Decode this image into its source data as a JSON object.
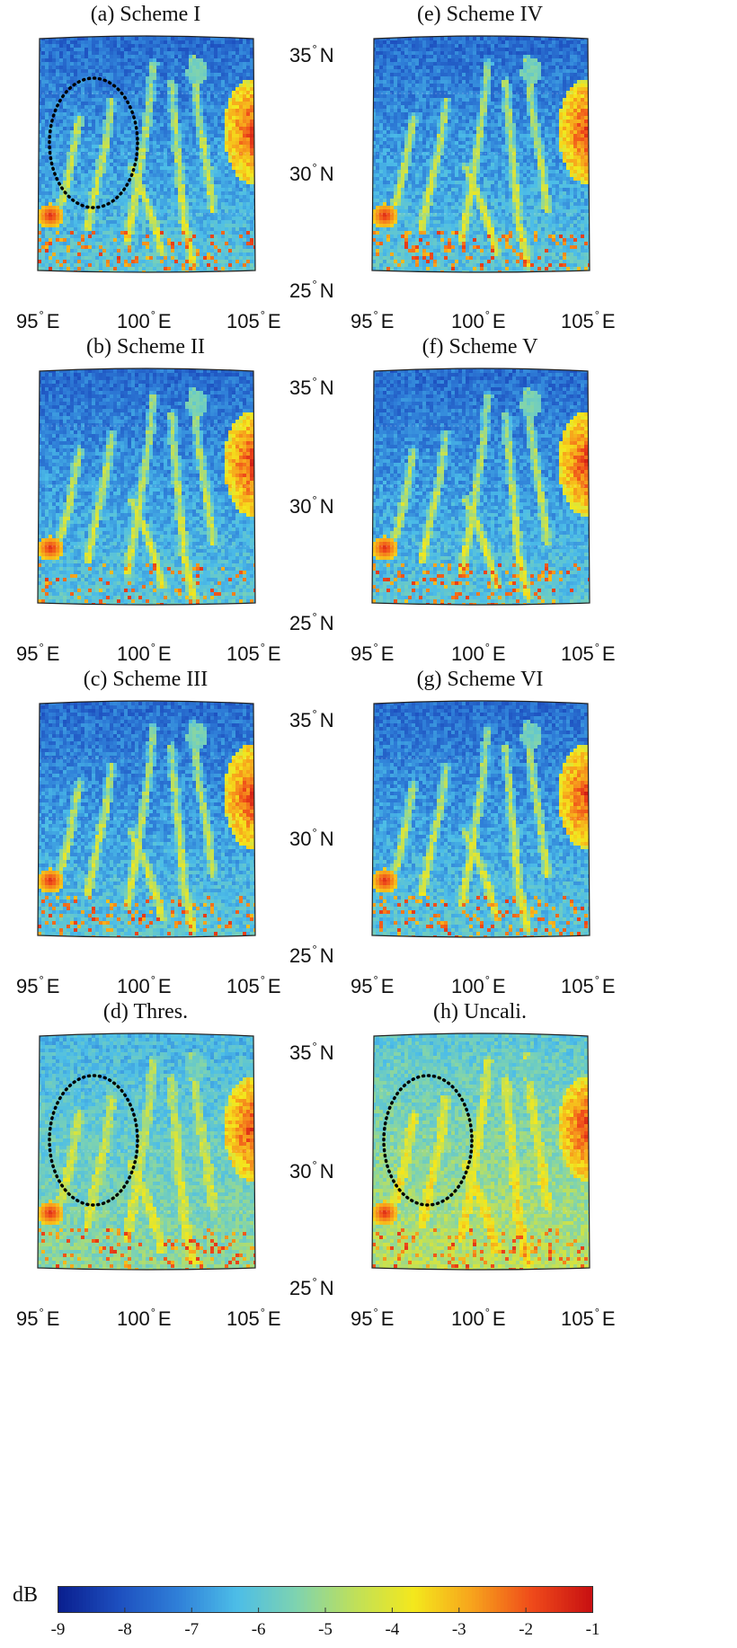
{
  "panels": [
    {
      "id": "a",
      "title": "(a) Scheme I",
      "column": 0,
      "row": 0,
      "variant": "scheme",
      "has_ellipse": true,
      "seed": 11
    },
    {
      "id": "e",
      "title": "(e) Scheme IV",
      "column": 1,
      "row": 0,
      "variant": "scheme",
      "has_ellipse": false,
      "seed": 17
    },
    {
      "id": "b",
      "title": "(b) Scheme II",
      "column": 0,
      "row": 1,
      "variant": "scheme",
      "has_ellipse": false,
      "seed": 23
    },
    {
      "id": "f",
      "title": "(f) Scheme V",
      "column": 1,
      "row": 1,
      "variant": "scheme",
      "has_ellipse": false,
      "seed": 29
    },
    {
      "id": "c",
      "title": "(c) Scheme III",
      "column": 0,
      "row": 2,
      "variant": "scheme",
      "has_ellipse": false,
      "seed": 31
    },
    {
      "id": "g",
      "title": "(g) Scheme VI",
      "column": 1,
      "row": 2,
      "variant": "scheme",
      "has_ellipse": false,
      "seed": 37
    },
    {
      "id": "d",
      "title": "(d) Thres.",
      "column": 0,
      "row": 3,
      "variant": "thres",
      "has_ellipse": true,
      "seed": 41
    },
    {
      "id": "h",
      "title": "(h) Uncali.",
      "column": 1,
      "row": 3,
      "variant": "uncali",
      "has_ellipse": true,
      "seed": 43
    }
  ],
  "axes": {
    "lat_labels": [
      "35",
      "30",
      "25"
    ],
    "lat_suffix": "N",
    "lon_labels": [
      "95",
      "100",
      "105"
    ],
    "lon_suffix": "E",
    "degree_symbol": "°",
    "lat_range": [
      25,
      35
    ],
    "lon_range": [
      95,
      105
    ]
  },
  "colorbar": {
    "unit": "dB",
    "ticks": [
      "-9",
      "-8",
      "-7",
      "-6",
      "-5",
      "-4",
      "-3",
      "-2",
      "-1"
    ],
    "range": [
      -9,
      -1
    ],
    "colormap": "jet",
    "stops": [
      "#0a1f8f",
      "#1d4fbf",
      "#2f7fd8",
      "#4cbde8",
      "#7ed3b0",
      "#bfe05a",
      "#f4e81c",
      "#f7a21c",
      "#ef4a1a",
      "#c81012"
    ]
  },
  "chart_data": {
    "type": "heatmap",
    "title": "",
    "unit": "dB",
    "value_range": [
      -9,
      -1
    ],
    "lon_range": [
      95,
      105
    ],
    "lat_range": [
      25,
      35
    ],
    "panels": [
      "(a) Scheme I",
      "(e) Scheme IV",
      "(b) Scheme II",
      "(f) Scheme V",
      "(c) Scheme III",
      "(g) Scheme VI",
      "(d) Thres.",
      "(h) Uncali."
    ],
    "typical_values_dB": {
      "background_schemes": -7.5,
      "background_thres": -6.2,
      "background_uncali": -5.8,
      "east_hotspot": -2.5,
      "west_hotspot": -1.8
    }
  }
}
